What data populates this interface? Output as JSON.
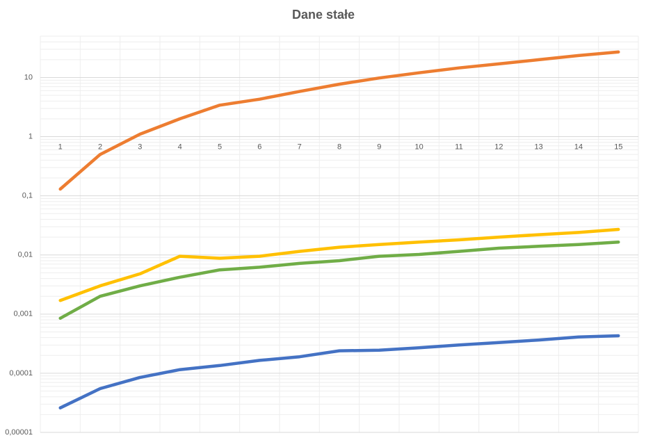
{
  "chart_data": {
    "type": "line",
    "title": "Dane stałe",
    "categories": [
      "1",
      "2",
      "3",
      "4",
      "5",
      "6",
      "7",
      "8",
      "9",
      "10",
      "11",
      "12",
      "13",
      "14",
      "15"
    ],
    "series": [
      {
        "color": "#4472c4",
        "values": [
          2.6e-05,
          5.5e-05,
          8.5e-05,
          0.000115,
          0.000135,
          0.000165,
          0.00019,
          0.00024,
          0.000245,
          0.00027,
          0.0003,
          0.00033,
          0.000365,
          0.00041,
          0.00043
        ]
      },
      {
        "color": "#ed7d31",
        "values": [
          0.13,
          0.5,
          1.1,
          2.0,
          3.4,
          4.3,
          5.8,
          7.7,
          9.8,
          12,
          14.5,
          17,
          20,
          23.5,
          27
        ]
      },
      {
        "color": "#ffc000",
        "values": [
          0.0017,
          0.003,
          0.0048,
          0.0095,
          0.0088,
          0.0095,
          0.0115,
          0.0135,
          0.015,
          0.0165,
          0.018,
          0.02,
          0.022,
          0.024,
          0.027
        ]
      },
      {
        "color": "#70ad47",
        "values": [
          0.00085,
          0.002,
          0.003,
          0.0042,
          0.0056,
          0.0062,
          0.0072,
          0.008,
          0.0095,
          0.0102,
          0.0115,
          0.013,
          0.014,
          0.015,
          0.0165
        ]
      }
    ],
    "log_scale": true,
    "ylim": [
      1e-05,
      50
    ],
    "yticks": [
      {
        "value": 1e-05,
        "label": "0,00001"
      },
      {
        "value": 0.0001,
        "label": "0,0001"
      },
      {
        "value": 0.001,
        "label": "0,001"
      },
      {
        "value": 0.01,
        "label": "0,01"
      },
      {
        "value": 0.1,
        "label": "0,1"
      },
      1,
      10
    ],
    "grid": true,
    "minor_grid": true,
    "xaxis_crosses": 1
  }
}
